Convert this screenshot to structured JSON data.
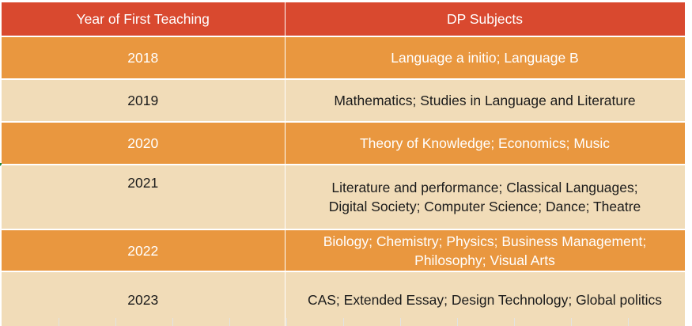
{
  "table": {
    "headers": {
      "year": "Year of First Teaching",
      "subjects": "DP Subjects"
    },
    "rows": [
      {
        "year": "2018",
        "subjects": [
          "Language a initio; Language B"
        ]
      },
      {
        "year": "2019",
        "subjects": [
          "Mathematics; Studies in Language and Literature"
        ]
      },
      {
        "year": "2020",
        "subjects": [
          "Theory of Knowledge; Economics; Music"
        ]
      },
      {
        "year": "2021",
        "subjects": [
          "Literature and performance; Classical Languages;",
          "Digital Society; Computer Science; Dance; Theatre"
        ]
      },
      {
        "year": "2022",
        "subjects": [
          "Biology; Chemistry; Physics; Business Management;",
          "Philosophy; Visual Arts"
        ]
      },
      {
        "year": "2023",
        "subjects": [
          "CAS; Extended Essay; Design Technology; Global politics"
        ]
      }
    ]
  },
  "colors": {
    "header": "#d9492f",
    "orange_row": "#e9973f",
    "beige_row": "#f1dcb8"
  }
}
